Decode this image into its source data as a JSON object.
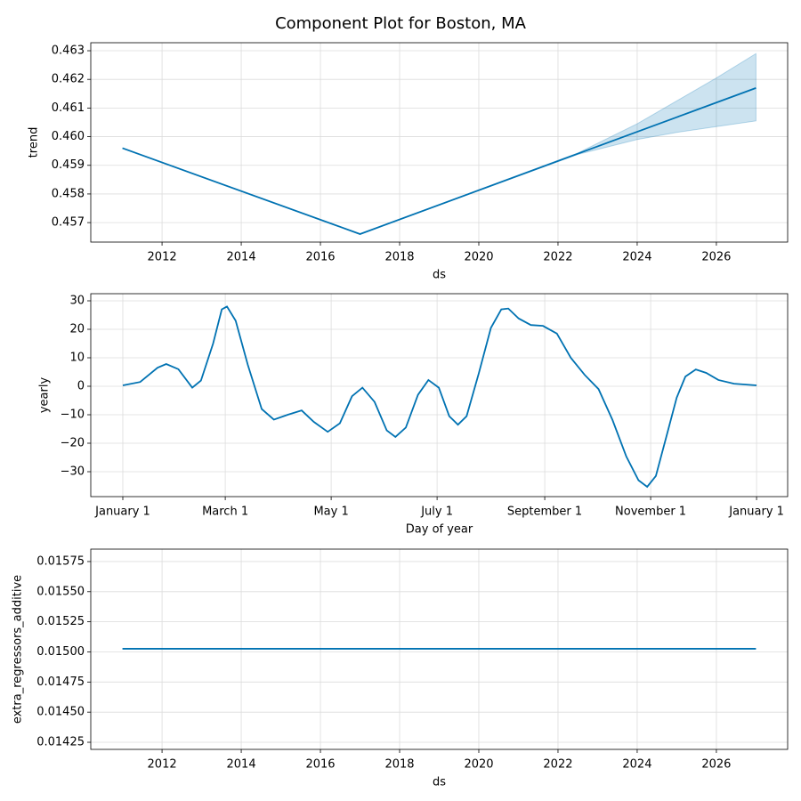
{
  "title": "Component Plot for Boston, MA",
  "chart_data": [
    {
      "type": "line",
      "xlabel": "ds",
      "ylabel": "trend",
      "color": "#0072B2",
      "grid": true,
      "x": [
        2011,
        2017,
        2022.5,
        2024,
        2025,
        2026,
        2027
      ],
      "values": [
        0.4596,
        0.4566,
        0.459405,
        0.46017,
        0.46068,
        0.46119,
        0.4617
      ],
      "lower": [
        0.4596,
        0.4566,
        0.45938,
        0.4599,
        0.46015,
        0.46035,
        0.46055
      ],
      "upper": [
        0.4596,
        0.4566,
        0.45943,
        0.46045,
        0.46125,
        0.46205,
        0.4629
      ],
      "xlim": [
        2010.2,
        2027.8
      ],
      "xticks": [
        2012,
        2014,
        2016,
        2018,
        2020,
        2022,
        2024,
        2026
      ],
      "ylim": [
        0.45632,
        0.46328
      ],
      "yticks": [
        0.457,
        0.458,
        0.459,
        {
          "value": 0.46,
          "label": "0.460"
        },
        0.461,
        0.462,
        0.463
      ]
    },
    {
      "type": "line",
      "xlabel": "Day of year",
      "ylabel": "yearly",
      "color": "#0072B2",
      "grid": true,
      "x": [
        0,
        10,
        20,
        25,
        32,
        40,
        45,
        52,
        57,
        60,
        65,
        72,
        80,
        87,
        95,
        103,
        110,
        118,
        125,
        132,
        138,
        145,
        152,
        157,
        163,
        170,
        176,
        182,
        188,
        193,
        198,
        205,
        212,
        218,
        222,
        228,
        235,
        242,
        250,
        258,
        266,
        274,
        282,
        290,
        297,
        302,
        307,
        313,
        319,
        324,
        330,
        336,
        343,
        352,
        365
      ],
      "values": [
        0.3,
        1.5,
        6.5,
        7.8,
        6,
        -0.5,
        2,
        15,
        27,
        28,
        23,
        7.5,
        -8,
        -11.7,
        -10,
        -8.5,
        -12.5,
        -16,
        -13,
        -3.5,
        -0.5,
        -5.5,
        -15.5,
        -17.8,
        -14.5,
        -3,
        2.2,
        -0.5,
        -10.5,
        -13.5,
        -10.5,
        4.5,
        20.5,
        27,
        27.3,
        23.8,
        21.5,
        21.2,
        18.5,
        10,
        4,
        -1,
        -11.8,
        -24.7,
        -33,
        -35.3,
        -31.5,
        -17.8,
        -4,
        3.4,
        5.9,
        4.7,
        2.2,
        0.9,
        0.3
      ],
      "xlim": [
        -18.45,
        382.9
      ],
      "xticks": [
        {
          "value": 0,
          "label": "January 1"
        },
        {
          "value": 59,
          "label": "March 1"
        },
        {
          "value": 120,
          "label": "May 1"
        },
        {
          "value": 181,
          "label": "July 1"
        },
        {
          "value": 243,
          "label": "September 1"
        },
        {
          "value": 304,
          "label": "November 1"
        },
        {
          "value": 365,
          "label": "January 1"
        }
      ],
      "ylim": [
        -38.75,
        32.5
      ],
      "yticks": [
        {
          "value": -30,
          "label": "−30"
        },
        {
          "value": -20,
          "label": "−20"
        },
        {
          "value": -10,
          "label": "−10"
        },
        0,
        10,
        20,
        30
      ]
    },
    {
      "type": "line",
      "xlabel": "ds",
      "ylabel": "extra_regressors_additive",
      "color": "#0072B2",
      "grid": true,
      "x": [
        2011,
        2027
      ],
      "values": [
        0.015026,
        0.015026
      ],
      "xlim": [
        2010.2,
        2027.8
      ],
      "xticks": [
        2012,
        2014,
        2016,
        2018,
        2020,
        2022,
        2024,
        2026
      ],
      "ylim": [
        0.014191,
        0.015853
      ],
      "yticks": [
        0.01425,
        {
          "value": 0.0145,
          "label": "0.01450"
        },
        0.01475,
        {
          "value": 0.015,
          "label": "0.01500"
        },
        0.01525,
        {
          "value": 0.0155,
          "label": "0.01550"
        },
        0.01575
      ]
    }
  ]
}
